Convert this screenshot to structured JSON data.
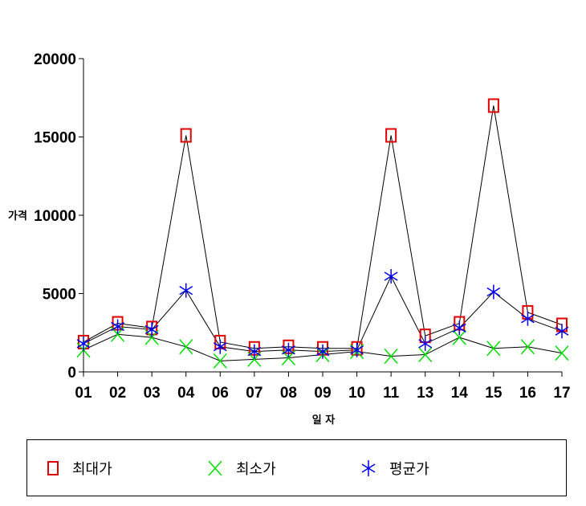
{
  "chart_data": {
    "type": "line",
    "ylabel": "가격",
    "xlabel": "일 자",
    "ylim": [
      0,
      20000
    ],
    "yticks": [
      0,
      5000,
      10000,
      15000,
      20000
    ],
    "categories": [
      "01",
      "02",
      "03",
      "04",
      "06",
      "07",
      "08",
      "09",
      "10",
      "11",
      "13",
      "14",
      "15",
      "16",
      "17"
    ],
    "series": [
      {
        "name": "최대가",
        "marker": "square",
        "color": "#e00000",
        "values": [
          1900,
          3100,
          2800,
          15100,
          1900,
          1500,
          1600,
          1500,
          1500,
          15100,
          2300,
          3100,
          17000,
          3800,
          3000
        ]
      },
      {
        "name": "최소가",
        "marker": "x",
        "color": "#00e000",
        "values": [
          1400,
          2400,
          2200,
          1600,
          700,
          800,
          900,
          1100,
          1300,
          1000,
          1100,
          2200,
          1500,
          1600,
          1200
        ]
      },
      {
        "name": "평균가",
        "marker": "asterisk",
        "color": "#0000ee",
        "values": [
          1800,
          2900,
          2700,
          5200,
          1600,
          1300,
          1400,
          1300,
          1400,
          6100,
          1800,
          2800,
          5100,
          3400,
          2600
        ]
      }
    ],
    "legend_position": "bottom",
    "grid": false
  }
}
